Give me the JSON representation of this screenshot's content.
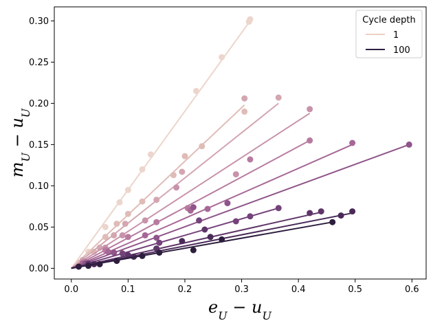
{
  "chart_data": {
    "type": "scatter",
    "xlabel": "e_U − u_U",
    "ylabel": "m_U − u_U",
    "xlabel_main": "e",
    "xlabel_sub1": "U",
    "xlabel_mid": " − u",
    "xlabel_sub2": "U",
    "ylabel_main": "m",
    "ylabel_sub1": "U",
    "ylabel_mid": " − u",
    "ylabel_sub2": "U",
    "xlim": [
      -0.03,
      0.625
    ],
    "ylim": [
      -0.013,
      0.317
    ],
    "x_ticks": [
      "0.0",
      "0.1",
      "0.2",
      "0.3",
      "0.4",
      "0.5",
      "0.6"
    ],
    "x_tick_values": [
      0,
      0.1,
      0.2,
      0.3,
      0.4,
      0.5,
      0.6
    ],
    "y_ticks": [
      "0.00",
      "0.05",
      "0.10",
      "0.15",
      "0.20",
      "0.25",
      "0.30"
    ],
    "y_tick_values": [
      0,
      0.05,
      0.1,
      0.15,
      0.2,
      0.25,
      0.3
    ],
    "grid": false,
    "legend": {
      "title": "Cycle depth",
      "placement": "top-right",
      "entries": [
        {
          "label": "1",
          "color": "#ebcfc4"
        },
        {
          "label": "100",
          "color": "#2d1e3e"
        }
      ]
    },
    "series": [
      {
        "color": "#ecd5cc",
        "line": {
          "x": [
            0,
            0.315
          ],
          "y": [
            0,
            0.3
          ]
        },
        "points": [
          [
            0.013,
            0.005
          ],
          [
            0.03,
            0.02
          ],
          [
            0.06,
            0.05
          ],
          [
            0.085,
            0.08
          ],
          [
            0.1,
            0.095
          ],
          [
            0.125,
            0.12
          ],
          [
            0.14,
            0.138
          ],
          [
            0.22,
            0.215
          ],
          [
            0.265,
            0.256
          ],
          [
            0.315,
            0.302
          ],
          [
            0.313,
            0.299
          ]
        ]
      },
      {
        "color": "#e0bcb7",
        "line": {
          "x": [
            0,
            0.305
          ],
          "y": [
            0,
            0.198
          ]
        },
        "points": [
          [
            0.015,
            0.007
          ],
          [
            0.04,
            0.02
          ],
          [
            0.06,
            0.038
          ],
          [
            0.08,
            0.054
          ],
          [
            0.1,
            0.066
          ],
          [
            0.125,
            0.081
          ],
          [
            0.18,
            0.113
          ],
          [
            0.2,
            0.136
          ],
          [
            0.23,
            0.148
          ],
          [
            0.305,
            0.19
          ]
        ]
      },
      {
        "color": "#d3a6b0",
        "line": {
          "x": [
            0,
            0.365
          ],
          "y": [
            0,
            0.2
          ]
        },
        "points": [
          [
            0.02,
            0.01
          ],
          [
            0.05,
            0.025
          ],
          [
            0.075,
            0.04
          ],
          [
            0.095,
            0.054
          ],
          [
            0.15,
            0.083
          ],
          [
            0.195,
            0.117
          ],
          [
            0.305,
            0.206
          ],
          [
            0.365,
            0.207
          ]
        ]
      },
      {
        "color": "#c893aa",
        "line": {
          "x": [
            0,
            0.42
          ],
          "y": [
            0,
            0.188
          ]
        },
        "points": [
          [
            0.02,
            0.008
          ],
          [
            0.06,
            0.025
          ],
          [
            0.09,
            0.04
          ],
          [
            0.13,
            0.058
          ],
          [
            0.185,
            0.098
          ],
          [
            0.29,
            0.114
          ],
          [
            0.42,
            0.193
          ]
        ]
      },
      {
        "color": "#b87ba0",
        "line": {
          "x": [
            0,
            0.42
          ],
          "y": [
            0,
            0.155
          ]
        },
        "points": [
          [
            0.025,
            0.008
          ],
          [
            0.06,
            0.022
          ],
          [
            0.1,
            0.038
          ],
          [
            0.15,
            0.056
          ],
          [
            0.205,
            0.073
          ],
          [
            0.315,
            0.132
          ],
          [
            0.42,
            0.155
          ]
        ]
      },
      {
        "color": "#a66896",
        "line": {
          "x": [
            0,
            0.495
          ],
          "y": [
            0,
            0.15
          ]
        },
        "points": [
          [
            0.02,
            0.006
          ],
          [
            0.065,
            0.02
          ],
          [
            0.13,
            0.04
          ],
          [
            0.21,
            0.07
          ],
          [
            0.24,
            0.072
          ],
          [
            0.495,
            0.152
          ]
        ]
      },
      {
        "color": "#8f5489",
        "line": {
          "x": [
            0,
            0.595
          ],
          "y": [
            0,
            0.15
          ]
        },
        "points": [
          [
            0.025,
            0.006
          ],
          [
            0.075,
            0.019
          ],
          [
            0.15,
            0.037
          ],
          [
            0.215,
            0.074
          ],
          [
            0.275,
            0.079
          ],
          [
            0.595,
            0.15
          ]
        ]
      },
      {
        "color": "#74427a",
        "line": {
          "x": [
            0,
            0.365
          ],
          "y": [
            0,
            0.073
          ]
        },
        "points": [
          [
            0.03,
            0.006
          ],
          [
            0.09,
            0.018
          ],
          [
            0.155,
            0.031
          ],
          [
            0.225,
            0.058
          ],
          [
            0.29,
            0.057
          ],
          [
            0.315,
            0.063
          ],
          [
            0.365,
            0.073
          ]
        ]
      },
      {
        "color": "#5e3568",
        "line": {
          "x": [
            0,
            0.44
          ],
          "y": [
            0,
            0.068
          ]
        },
        "points": [
          [
            0.03,
            0.005
          ],
          [
            0.1,
            0.016
          ],
          [
            0.15,
            0.024
          ],
          [
            0.235,
            0.047
          ],
          [
            0.42,
            0.067
          ],
          [
            0.44,
            0.069
          ]
        ]
      },
      {
        "color": "#4a2a58",
        "line": {
          "x": [
            0,
            0.495
          ],
          "y": [
            0,
            0.067
          ]
        },
        "points": [
          [
            0.04,
            0.005
          ],
          [
            0.11,
            0.014
          ],
          [
            0.195,
            0.033
          ],
          [
            0.245,
            0.038
          ],
          [
            0.475,
            0.064
          ],
          [
            0.495,
            0.069
          ]
        ]
      },
      {
        "color": "#2d1e3e",
        "line": {
          "x": [
            0,
            0.46
          ],
          "y": [
            0,
            0.056
          ]
        },
        "points": [
          [
            0.013,
            0.002
          ],
          [
            0.03,
            0.003
          ],
          [
            0.05,
            0.005
          ],
          [
            0.08,
            0.009
          ],
          [
            0.125,
            0.015
          ],
          [
            0.155,
            0.019
          ],
          [
            0.215,
            0.022
          ],
          [
            0.265,
            0.035
          ],
          [
            0.46,
            0.056
          ]
        ]
      }
    ]
  }
}
